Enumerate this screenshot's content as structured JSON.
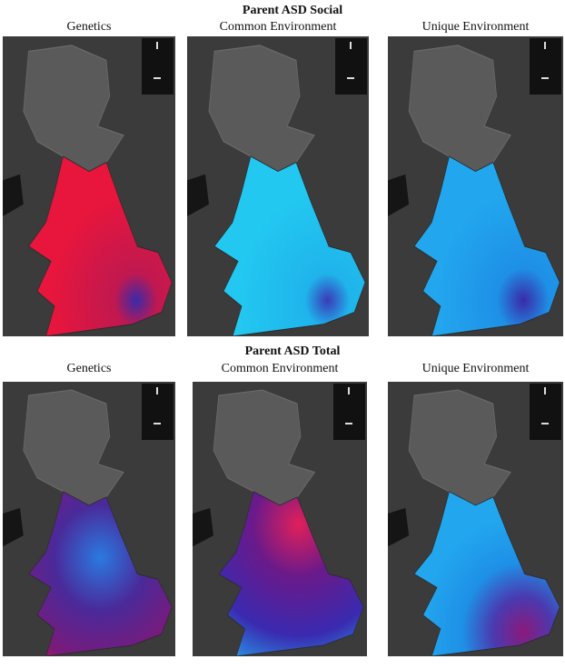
{
  "panels": [
    {
      "title": "Parent ASD Social",
      "maps": [
        {
          "label": "Genetics"
        },
        {
          "label": "Common Environment"
        },
        {
          "label": "Unique Environment"
        }
      ]
    },
    {
      "title": "Parent ASD Total",
      "maps": [
        {
          "label": "Genetics"
        },
        {
          "label": "Common Environment"
        },
        {
          "label": "Unique Environment"
        }
      ]
    }
  ]
}
